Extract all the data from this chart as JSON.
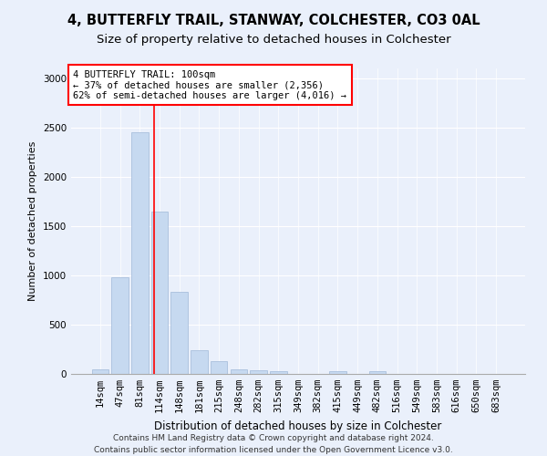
{
  "title1": "4, BUTTERFLY TRAIL, STANWAY, COLCHESTER, CO3 0AL",
  "title2": "Size of property relative to detached houses in Colchester",
  "xlabel": "Distribution of detached houses by size in Colchester",
  "ylabel": "Number of detached properties",
  "footnote": "Contains HM Land Registry data © Crown copyright and database right 2024.\nContains public sector information licensed under the Open Government Licence v3.0.",
  "categories": [
    "14sqm",
    "47sqm",
    "81sqm",
    "114sqm",
    "148sqm",
    "181sqm",
    "215sqm",
    "248sqm",
    "282sqm",
    "315sqm",
    "349sqm",
    "382sqm",
    "415sqm",
    "449sqm",
    "482sqm",
    "516sqm",
    "549sqm",
    "583sqm",
    "616sqm",
    "650sqm",
    "683sqm"
  ],
  "values": [
    50,
    980,
    2450,
    1650,
    830,
    240,
    130,
    50,
    40,
    30,
    0,
    0,
    30,
    0,
    25,
    0,
    0,
    0,
    0,
    0,
    0
  ],
  "bar_color": "#c6d9f0",
  "bar_edge_color": "#a0b8d8",
  "vline_x": 2.72,
  "vline_color": "red",
  "annotation_text": "4 BUTTERFLY TRAIL: 100sqm\n← 37% of detached houses are smaller (2,356)\n62% of semi-detached houses are larger (4,016) →",
  "annotation_box_color": "white",
  "annotation_box_edge_color": "red",
  "ylim": [
    0,
    3100
  ],
  "yticks": [
    0,
    500,
    1000,
    1500,
    2000,
    2500,
    3000
  ],
  "bg_color": "#eaf0fb",
  "plot_bg_color": "#eaf0fb",
  "title1_fontsize": 10.5,
  "title2_fontsize": 9.5,
  "xlabel_fontsize": 8.5,
  "ylabel_fontsize": 8,
  "tick_fontsize": 7.5,
  "annotation_fontsize": 7.5,
  "footnote_fontsize": 6.5
}
